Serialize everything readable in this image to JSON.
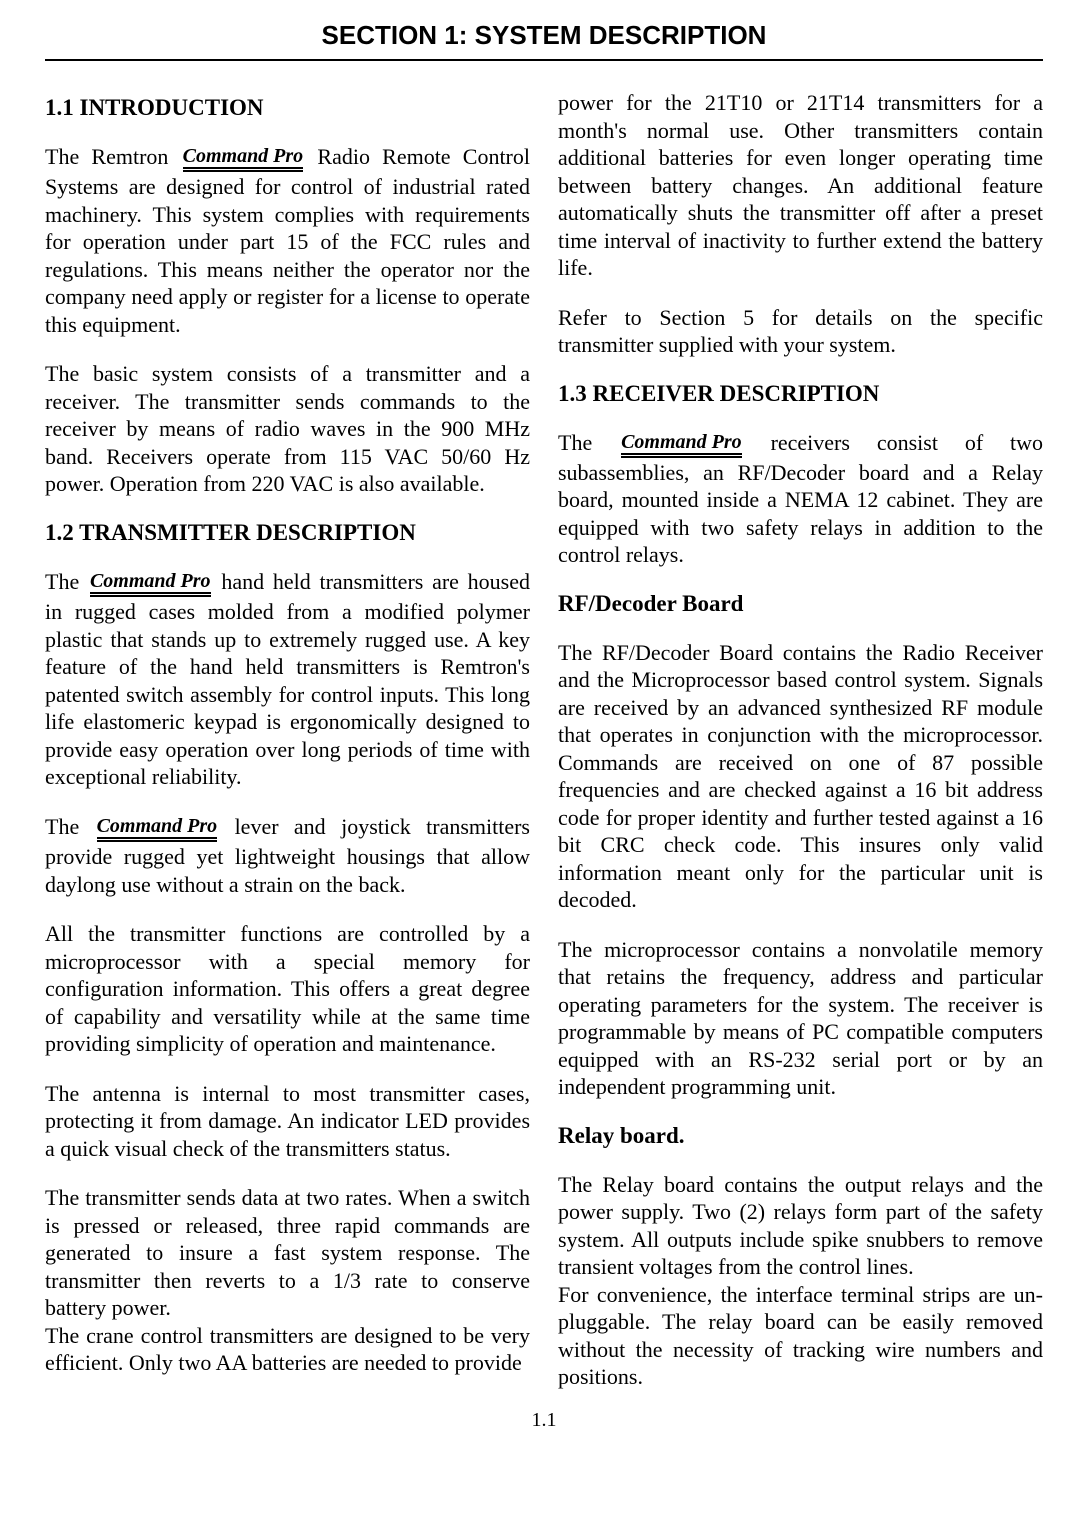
{
  "sectionHeader": "SECTION 1:  SYSTEM DESCRIPTION",
  "logo": "Command Pro",
  "pageNumber": "1.1",
  "left": {
    "h1_1": "1.1  INTRODUCTION",
    "p1a": "The Remtron ",
    "p1b": " Radio Remote Control Systems are designed for control of industrial rated machinery. This system complies with requirements for operation under part 15 of the FCC rules and regulations. This means neither the operator nor the company need apply or register for a license to operate this equipment.",
    "p2": "The basic system consists of a transmitter and a receiver. The transmitter sends commands to the receiver by means of radio waves in the 900 MHz band. Receivers operate from 115 VAC 50/60 Hz power. Operation from 220 VAC is also available.",
    "h1_2": "1.2 TRANSMITTER DESCRIPTION",
    "p3a": "The ",
    "p3b": " hand held transmitters are housed in rugged cases molded from a modified polymer plastic that stands up to extremely rugged use. A key feature of the hand held transmitters is Remtron's patented switch assembly for control inputs. This long life elastomeric keypad is ergonomically designed to provide easy operation over long periods of time with exceptional reliability.",
    "p4a": "The ",
    "p4b": " lever and joystick transmitters provide rugged yet lightweight housings that allow daylong use without a strain on the back.",
    "p5": "All the transmitter functions are controlled by a microprocessor with a special memory for configuration information. This offers a great degree of capability and versatility while at the same time providing simplicity of operation and maintenance.",
    "p6": "The antenna is internal to most transmitter cases, protecting it from damage. An indicator LED provides a quick visual check of the transmitters status.",
    "p7": "The transmitter sends data at two rates. When a switch is pressed or released, three rapid commands are generated to insure a fast system response. The transmitter then reverts to a 1/3 rate to conserve battery power.",
    "p8": "The crane control transmitters are designed to be very efficient. Only two AA batteries are needed to provide"
  },
  "right": {
    "p1": "power for the 21T10 or 21T14 transmitters for a month's normal use. Other transmitters contain additional batteries for even longer operating time between battery changes. An additional feature automatically shuts the transmitter off after a preset time interval of inactivity to further extend the battery life.",
    "p2": "Refer to Section 5 for details on the specific transmitter supplied with your system.",
    "h1_3": "1.3  RECEIVER DESCRIPTION",
    "p3a": "The  ",
    "p3b": " receivers consist of two subassemblies, an RF/Decoder board and a Relay board, mounted inside a NEMA 12 cabinet. They are equipped with two safety relays in addition to the control relays.",
    "sh1": "RF/Decoder Board",
    "p4": "The RF/Decoder Board contains the Radio Receiver and the Microprocessor based control system. Signals are received by an advanced synthesized RF module that operates in conjunction with the microprocessor. Commands are received on one of  87 possible frequencies and are checked against a 16 bit address code for proper identity and further tested against a 16 bit CRC check code. This insures only valid information meant only for the particular unit is decoded.",
    "p5": "The microprocessor contains a nonvolatile memory that retains the frequency, address and particular operating parameters for the system. The receiver is programmable by means of  PC compatible computers equipped with an RS-232 serial port or by an independent programming unit.",
    "sh2": "Relay board.",
    "p6": "The Relay board contains the output relays and the power supply. Two (2) relays form part of the safety system. All outputs include spike snubbers to remove transient voltages from the control lines.",
    "p7": "For convenience, the interface terminal strips are un-pluggable. The relay board can be easily removed without the necessity of tracking wire numbers and positions."
  }
}
